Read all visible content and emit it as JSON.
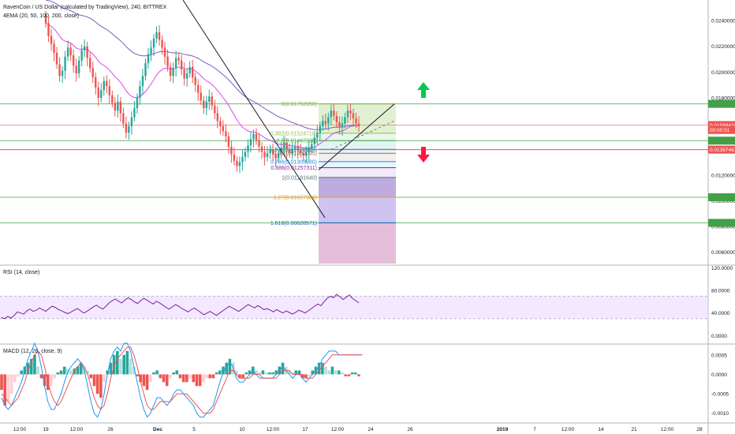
{
  "header": {
    "title": "RavenCoin / US Dollar (calculated by TradingView), 240, BITTREX",
    "indicator": "4EMA (20, 50, 100, 200, close)"
  },
  "chart_data": [
    {
      "type": "candlestick",
      "ylim": [
        0.005,
        0.0256
      ],
      "price_axis_ticks": [
        "0.02400000",
        "0.02200000",
        "0.02000000",
        "0.01800000",
        "0.01600000",
        "0.01200000",
        "0.01000000",
        "0.00800000",
        "0.00600000"
      ],
      "price_tags": [
        {
          "text": "0.01588418",
          "value": 0.01588418,
          "color": "#ef5350"
        },
        {
          "text": "00:00:51",
          "value": 0.0155,
          "color": "#ef5350"
        },
        {
          "text": "0.01397461",
          "value": 0.01397461,
          "color": "#ef5350"
        }
      ],
      "candles_close": [
        0.0238,
        0.0228,
        0.0222,
        0.0215,
        0.0206,
        0.0197,
        0.0201,
        0.0212,
        0.0219,
        0.0213,
        0.0205,
        0.0199,
        0.0209,
        0.0217,
        0.022,
        0.0211,
        0.0203,
        0.0196,
        0.0188,
        0.018,
        0.0186,
        0.0193,
        0.0189,
        0.0182,
        0.0176,
        0.017,
        0.0177,
        0.0168,
        0.016,
        0.0153,
        0.0158,
        0.0165,
        0.0172,
        0.018,
        0.0189,
        0.0197,
        0.0207,
        0.0214,
        0.0219,
        0.0226,
        0.0231,
        0.0225,
        0.0219,
        0.0212,
        0.0204,
        0.0197,
        0.0203,
        0.0211,
        0.0209,
        0.0202,
        0.0195,
        0.0199,
        0.0204,
        0.0196,
        0.019,
        0.0184,
        0.0178,
        0.0172,
        0.0177,
        0.0181,
        0.0174,
        0.0168,
        0.0162,
        0.0158,
        0.0154,
        0.015,
        0.0142,
        0.0136,
        0.0131,
        0.0127,
        0.013,
        0.0134,
        0.0138,
        0.0143,
        0.0148,
        0.0152,
        0.0147,
        0.0142,
        0.0138,
        0.0134,
        0.0137,
        0.014,
        0.0136,
        0.0133,
        0.0137,
        0.0141,
        0.0145,
        0.014,
        0.0137,
        0.014,
        0.0142,
        0.0139,
        0.0137,
        0.0135,
        0.0138,
        0.0141,
        0.0144,
        0.0149,
        0.0153,
        0.0158,
        0.0162,
        0.016,
        0.0165,
        0.017,
        0.0166,
        0.0161,
        0.0157,
        0.016,
        0.0165,
        0.017,
        0.0168,
        0.0164,
        0.016,
        0.0158
      ],
      "trendline_note": ""
    },
    {
      "type": "fibonacci",
      "levels": [
        {
          "label": "0(0.01752950)",
          "value": 0.0175295,
          "color": "#7cb342",
          "fill": "#dcedc8"
        },
        {
          "label": "0.382(0.01524710)",
          "value": 0.0152471,
          "color": "#8bc34a",
          "fill": "#e6f4ea"
        },
        {
          "label": "0.5(0.01467235)",
          "value": 0.01467235,
          "color": "#4caf50",
          "fill": "#e0f2f1"
        },
        {
          "label": "0.618(0.01399888)",
          "value": 0.01399888,
          "color": "#26a69a",
          "fill": "#e1f5fe"
        },
        {
          "label": "0.65(0.01369095)",
          "value": 0.01369095,
          "color": "#8d6e63",
          "fill": "#efebe9"
        },
        {
          "label": "0.786(0.01303980)",
          "value": 0.0130398,
          "color": "#1e88e5",
          "fill": "#e3f2fd"
        },
        {
          "label": "0.886(0.01257311)",
          "value": 0.01257311,
          "color": "#8e24aa",
          "fill": "#ede7f6"
        },
        {
          "label": "1(0.01181640)",
          "value": 0.0118164,
          "color": "#546e7a",
          "fill": "#b39ddb"
        },
        {
          "label": "1.27(0.01027386)",
          "value": 0.01027386,
          "color": "#ff9800",
          "fill": "#c5b8ee"
        },
        {
          "label": "1.618(0.00828571)",
          "value": 0.00828571,
          "color": "#1565c0",
          "fill": "#e1b3d2"
        }
      ],
      "horizontal_lines": [
        {
          "value": 0.0175295,
          "color": "#66bb6a"
        },
        {
          "value": 0.01588418,
          "color": "#ef9a9a"
        },
        {
          "value": 0.01467235,
          "color": "#66bb6a"
        },
        {
          "value": 0.01397461,
          "color": "#ef5350"
        },
        {
          "value": 0.01027386,
          "color": "#66bb6a"
        },
        {
          "value": 0.00828571,
          "color": "#66bb6a"
        }
      ]
    },
    {
      "type": "line",
      "title": "RSI (14, close)",
      "axis_ticks": [
        "120.0000",
        "80.0000",
        "40.0000",
        "0.0000"
      ],
      "ylim": [
        -15,
        125
      ],
      "band": [
        30,
        70
      ],
      "values": [
        32,
        30,
        34,
        31,
        36,
        42,
        40,
        38,
        44,
        47,
        43,
        45,
        49,
        46,
        43,
        48,
        52,
        50,
        46,
        44,
        41,
        39,
        42,
        45,
        48,
        44,
        40,
        43,
        47,
        51,
        54,
        50,
        47,
        52,
        58,
        62,
        65,
        61,
        58,
        63,
        67,
        64,
        60,
        57,
        62,
        66,
        63,
        59,
        56,
        61,
        58,
        54,
        50,
        47,
        51,
        55,
        52,
        48,
        45,
        42,
        46,
        49,
        45,
        41,
        37,
        40,
        43,
        39,
        36,
        40,
        44,
        48,
        52,
        49,
        46,
        43,
        47,
        51,
        55,
        52,
        49,
        53,
        50,
        46,
        48,
        45,
        42,
        46,
        43,
        40,
        44,
        41,
        38,
        41,
        45,
        43,
        40,
        44,
        48,
        52,
        56,
        53,
        60,
        66,
        70,
        67,
        73,
        69,
        64,
        68,
        72,
        66,
        62,
        58
      ]
    },
    {
      "type": "bar",
      "title": "MACD (12, 26, close, 9)",
      "axis_ticks": [
        "0.0005",
        "0.0000",
        "-0.0005",
        "-0.0010"
      ],
      "ylim": [
        -0.00125,
        0.00078
      ],
      "histogram": [
        -0.0004,
        -0.0008,
        -0.0007,
        -0.0005,
        -0.0002,
        -5e-05,
        0.0001,
        0.0002,
        0.0003,
        0.0004,
        0.0005,
        0.0002,
        -0.0001,
        -0.0003,
        -0.0004,
        -0.0003,
        -0.0001,
        5e-05,
        0.0001,
        0.0002,
        0.00015,
        0.0001,
        0.00015,
        0.0002,
        0.0003,
        0.0002,
        0.0001,
        -0.0001,
        -0.0003,
        -0.0005,
        -0.0006,
        -0.0002,
        0.0001,
        0.0003,
        0.0005,
        0.0006,
        0.0004,
        0.0005,
        0.0006,
        0.0004,
        0.0002,
        -5e-05,
        -0.0002,
        -0.0003,
        -0.0004,
        -0.0002,
        5e-05,
        0.0001,
        -0.0001,
        -0.0002,
        -0.0003,
        -0.0001,
        5e-05,
        0.0001,
        -0.0001,
        -0.0002,
        -0.0002,
        -0.0001,
        -0.0002,
        -0.0003,
        -0.0003,
        -0.0002,
        -0.0001,
        -0.0001,
        -0.0001,
        5e-05,
        0.0001,
        0.0002,
        0.0003,
        0.0004,
        0.0003,
        0.0001,
        -0.0001,
        -0.0001,
        5e-05,
        0.0001,
        0.0002,
        0.0001,
        5e-05,
        0.0001,
        5e-05,
        5e-05,
        5e-05,
        0.0001,
        0.0002,
        0.0003,
        0.0002,
        0.0001,
        5e-05,
        0.0001,
        0.0001,
        -0.0001,
        -0.0001,
        -5e-05,
        0.0001,
        0.0002,
        0.0003,
        0.0003,
        0.0002,
        0.0001,
        0.0002,
        0.0001,
        0.0001,
        5e-05,
        -5e-05,
        -5e-05,
        5e-05,
        5e-05,
        -5e-05
      ],
      "macd_line": [
        -0.0006,
        -0.0008,
        -0.0009,
        -0.0008,
        -0.0006,
        -0.0004,
        -0.0002,
        0.0001,
        0.0004,
        0.0006,
        0.0008,
        0.0006,
        0.0002,
        -0.0003,
        -0.0007,
        -0.0009,
        -0.0009,
        -0.0007,
        -0.0005,
        -0.0002,
        5e-05,
        0.0002,
        0.0003,
        0.0004,
        0.0003,
        0.0001,
        -0.0003,
        -0.0007,
        -0.001,
        -0.0011,
        -0.0009,
        -0.0005,
        0.0,
        0.0004,
        0.0006,
        0.0007,
        0.0006,
        0.0008,
        0.0008,
        0.0006,
        0.0002,
        -0.0002,
        -0.0006,
        -0.0009,
        -0.0011,
        -0.001,
        -0.0008,
        -0.0006,
        -0.0006,
        -0.0007,
        -0.0008,
        -0.0007,
        -0.0005,
        -0.0004,
        -0.0004,
        -0.0005,
        -0.0006,
        -0.0007,
        -0.0008,
        -0.001,
        -0.0011,
        -0.0011,
        -0.001,
        -0.0009,
        -0.0008,
        -0.0005,
        -0.0002,
        5e-05,
        0.0002,
        0.0003,
        0.0002,
        -0.0001,
        -0.0002,
        -0.0002,
        -0.0001,
        0.0,
        0.0001,
        0.0,
        -0.0001,
        -0.0001,
        -0.0001,
        -0.0001,
        -0.0001,
        0.0,
        0.0001,
        0.0002,
        0.0001,
        0.0,
        -0.0001,
        0.0,
        0.0,
        -0.0001,
        -0.0002,
        -0.0001,
        0.0,
        0.0001,
        0.0002,
        0.0004,
        0.0005,
        0.0006,
        0.0006,
        0.0006,
        0.0005,
        0.0005,
        0.0005,
        0.0005,
        0.0005,
        0.0005,
        0.0005,
        0.0005
      ],
      "signal_line": [
        -0.0005,
        -0.0006,
        -0.0007,
        -0.0008,
        -0.0007,
        -0.0006,
        -0.0004,
        -0.0002,
        0.0001,
        0.0003,
        0.0005,
        0.0006,
        0.0005,
        0.0002,
        -0.0002,
        -0.0005,
        -0.0007,
        -0.0008,
        -0.0007,
        -0.0005,
        -0.0003,
        -0.0001,
        0.0001,
        0.0002,
        0.0003,
        0.0002,
        0.0,
        -0.0003,
        -0.0006,
        -0.0008,
        -0.0009,
        -0.0008,
        -0.0005,
        -0.0001,
        0.0002,
        0.0004,
        0.0005,
        0.0006,
        0.0007,
        0.0007,
        0.0005,
        0.0002,
        -0.0002,
        -0.0005,
        -0.0008,
        -0.0009,
        -0.0009,
        -0.0008,
        -0.0007,
        -0.0007,
        -0.0007,
        -0.0007,
        -0.0006,
        -0.0005,
        -0.0005,
        -0.0005,
        -0.0005,
        -0.0006,
        -0.0007,
        -0.0008,
        -0.0009,
        -0.001,
        -0.001,
        -0.001,
        -0.0009,
        -0.0007,
        -0.0005,
        -0.0003,
        -0.0001,
        0.0001,
        0.0001,
        0.0,
        -0.0001,
        -0.0001,
        -0.0001,
        -0.0001,
        0.0,
        0.0,
        0.0,
        -0.0001,
        -0.0001,
        -0.0001,
        -0.0001,
        -0.0001,
        0.0,
        0.0001,
        0.0001,
        0.0001,
        0.0,
        0.0,
        0.0,
        0.0,
        -0.0001,
        -0.0001,
        -0.0001,
        0.0,
        0.0001,
        0.0002,
        0.0003,
        0.0004,
        0.0005,
        0.0005,
        0.0005,
        0.0005,
        0.0005,
        0.0005,
        0.0005,
        0.0005,
        0.0005,
        0.0005
      ],
      "macd_color": "#2196f3",
      "signal_color": "#ef5350"
    }
  ],
  "time_axis": {
    "labels": [
      "12:00",
      "19",
      "12:00",
      "26",
      "Dec",
      "5",
      "10",
      "12:00",
      "17",
      "12:00",
      "24",
      "26",
      "2019",
      "7",
      "12:00",
      "14",
      "21",
      "12:00",
      "28"
    ]
  },
  "arrows": {
    "up_color": "#00c853",
    "down_color": "#ff1744"
  },
  "colors": {
    "up_candle": "#26a69a",
    "down_candle": "#ef5350",
    "ema20": "#e040fb",
    "ema50": "#7e57c2",
    "rsi_line": "#7b1fa2",
    "rsi_band": "#e9d5ff"
  }
}
